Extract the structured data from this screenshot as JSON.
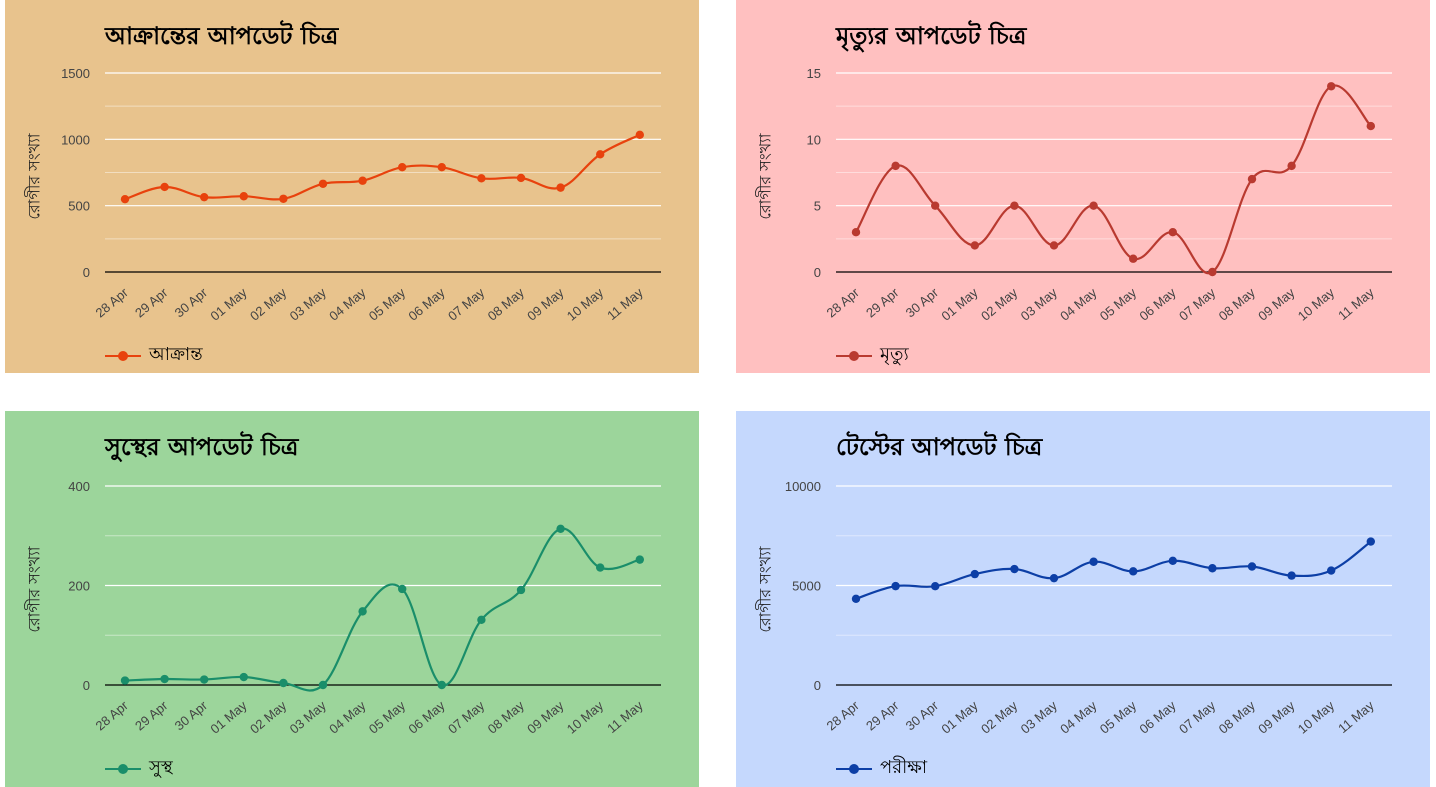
{
  "y_axis_label": "রোগীর সংখ্যা",
  "categories": [
    "28 Apr",
    "29 Apr",
    "30 Apr",
    "01 May",
    "02 May",
    "03 May",
    "04 May",
    "05 May",
    "06 May",
    "07 May",
    "08 May",
    "09 May",
    "10 May",
    "11 May"
  ],
  "chart_data": [
    {
      "type": "line",
      "title": "আক্রান্তের আপডেট চিত্র",
      "ylabel": "রোগীর সংখ্যা",
      "background": "#e8c38d",
      "color": "#e8420d",
      "ylim": [
        0,
        1500
      ],
      "yticks": [
        0,
        500,
        1000,
        1500
      ],
      "grid": true,
      "legend_position": "bottom-left",
      "series": [
        {
          "name": "আক্রান্ত",
          "values": [
            549,
            641,
            564,
            571,
            552,
            665,
            688,
            790,
            790,
            706,
            709,
            636,
            887,
            1034
          ]
        }
      ]
    },
    {
      "type": "line",
      "title": "মৃত্যুর আপডেট চিত্র",
      "ylabel": "রোগীর সংখ্যা",
      "background": "#ffc0c0",
      "color": "#b93a30",
      "ylim": [
        0,
        15
      ],
      "yticks": [
        0,
        5,
        10,
        15
      ],
      "grid": true,
      "legend_position": "bottom-left",
      "series": [
        {
          "name": "মৃত্যু",
          "values": [
            3,
            8,
            5,
            2,
            5,
            2,
            5,
            1,
            3,
            0,
            7,
            8,
            14,
            11
          ]
        }
      ]
    },
    {
      "type": "line",
      "title": "সুস্থের আপডেট চিত্র",
      "ylabel": "রোগীর সংখ্যা",
      "background": "#9cd59b",
      "color": "#1a8e6a",
      "ylim": [
        0,
        400
      ],
      "yticks": [
        0,
        200,
        400
      ],
      "grid": true,
      "legend_position": "bottom-left",
      "series": [
        {
          "name": "সুস্থ",
          "values": [
            9,
            12,
            11,
            16,
            4,
            0,
            148,
            193,
            0,
            131,
            191,
            314,
            236,
            252
          ]
        }
      ]
    },
    {
      "type": "line",
      "title": "টেস্টের আপডেট চিত্র",
      "ylabel": "রোগীর সংখ্যা",
      "background": "#c5d8fd",
      "color": "#0d3fa6",
      "ylim": [
        0,
        10000
      ],
      "yticks": [
        0,
        5000,
        10000
      ],
      "grid": true,
      "legend_position": "bottom-left",
      "series": [
        {
          "name": "পরীক্ষা",
          "values": [
            4332,
            4968,
            4965,
            5573,
            5827,
            5368,
            6193,
            5711,
            6241,
            5867,
            5955,
            5497,
            5752,
            7208
          ]
        }
      ]
    }
  ]
}
